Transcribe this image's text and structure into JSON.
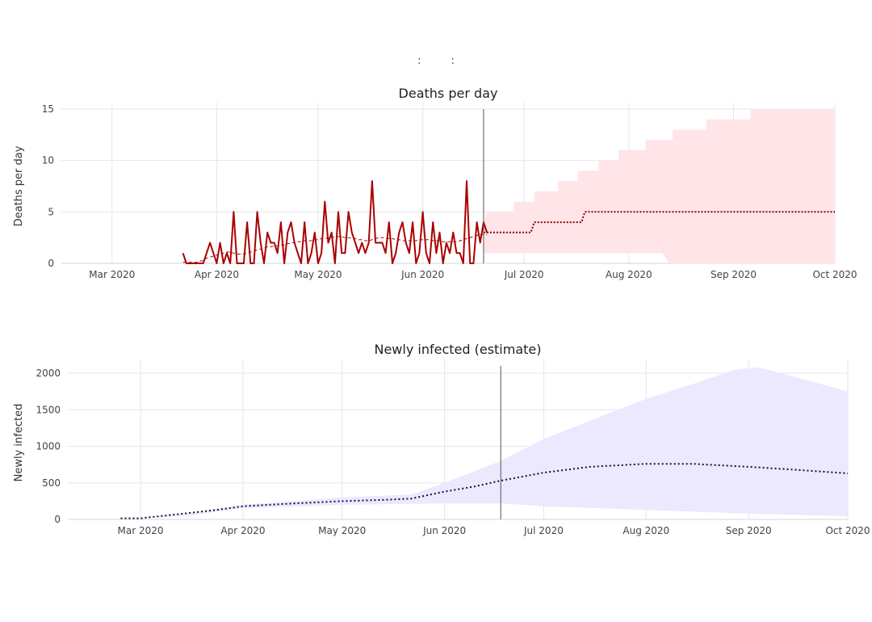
{
  "page_title": ":         :",
  "chart_data": [
    {
      "type": "line",
      "title": "Deaths per day",
      "ylabel": "Deaths per day",
      "xlabel": "",
      "x_ticks": [
        "Mar 2020",
        "Apr 2020",
        "May 2020",
        "Jun 2020",
        "Jul 2020",
        "Aug 2020",
        "Sep 2020",
        "Oct 2020"
      ],
      "x_tick_dates": [
        "2020-03-01",
        "2020-04-01",
        "2020-05-01",
        "2020-06-01",
        "2020-07-01",
        "2020-08-01",
        "2020-09-01",
        "2020-10-01"
      ],
      "xlim": [
        "2020-02-15",
        "2020-10-01"
      ],
      "y_ticks": [
        0,
        5,
        10,
        15
      ],
      "ylim": [
        0,
        15
      ],
      "grid": true,
      "vline_date": "2020-06-19",
      "colors": {
        "observed": "#aa0000",
        "forecast": "#8b0000",
        "band": "#ffe4e8"
      },
      "series": [
        {
          "role": "observed",
          "style": "solid",
          "start_date": "2020-03-22",
          "values": [
            1,
            0,
            0,
            0,
            0,
            0,
            0,
            1,
            2,
            1,
            0,
            2,
            0,
            1,
            0,
            5,
            0,
            0,
            0,
            4,
            0,
            0,
            5,
            2,
            0,
            3,
            2,
            2,
            1,
            4,
            0,
            3,
            4,
            2,
            1,
            0,
            4,
            0,
            1,
            3,
            0,
            1,
            6,
            2,
            3,
            0,
            5,
            1,
            1,
            5,
            3,
            2,
            1,
            2,
            1,
            2,
            8,
            2,
            2,
            2,
            1,
            4,
            0,
            1,
            3,
            4,
            2,
            1,
            4,
            0,
            1,
            5,
            1,
            0,
            4,
            1,
            3,
            0,
            2,
            1,
            3,
            1,
            1,
            0,
            8,
            0,
            0,
            4,
            2,
            4,
            3
          ]
        },
        {
          "role": "observed-smoothed",
          "style": "dashed",
          "start_date": "2020-03-22",
          "values": [
            0.1,
            0.1,
            0.1,
            0.1,
            0.1,
            0.2,
            0.3,
            0.5,
            0.6,
            0.7,
            0.8,
            0.9,
            1.0,
            1.1,
            1.1,
            1.0,
            0.9,
            0.9,
            0.9,
            1.0,
            1.1,
            1.2,
            1.3,
            1.4,
            1.5,
            1.6,
            1.6,
            1.7,
            1.7,
            1.8,
            1.8,
            1.9,
            2.0,
            2.0,
            2.1,
            2.1,
            2.2,
            2.2,
            2.2,
            2.3,
            2.3,
            2.4,
            2.4,
            2.5,
            2.5,
            2.6,
            2.6,
            2.6,
            2.5,
            2.5,
            2.4,
            2.4,
            2.3,
            2.3,
            2.2,
            2.2,
            2.3,
            2.4,
            2.5,
            2.5,
            2.5,
            2.4,
            2.4,
            2.3,
            2.3,
            2.2,
            2.2,
            2.2,
            2.2,
            2.2,
            2.3,
            2.3,
            2.3,
            2.3,
            2.2,
            2.2,
            2.2,
            2.1,
            2.1,
            2.1,
            2.1,
            2.1,
            2.2,
            2.3,
            2.4,
            2.5,
            2.6,
            2.7,
            2.8,
            2.8,
            2.8
          ]
        },
        {
          "role": "forecast",
          "style": "dotted",
          "points": [
            [
              "2020-06-19",
              3
            ],
            [
              "2020-07-03",
              3
            ],
            [
              "2020-07-04",
              4
            ],
            [
              "2020-07-18",
              4
            ],
            [
              "2020-07-19",
              5
            ],
            [
              "2020-10-01",
              5
            ]
          ]
        }
      ],
      "band_upper": [
        [
          "2020-06-19",
          4
        ],
        [
          "2020-06-20",
          5
        ],
        [
          "2020-06-28",
          5
        ],
        [
          "2020-06-28",
          6
        ],
        [
          "2020-07-04",
          6
        ],
        [
          "2020-07-04",
          7
        ],
        [
          "2020-07-11",
          7
        ],
        [
          "2020-07-11",
          8
        ],
        [
          "2020-07-17",
          8
        ],
        [
          "2020-07-17",
          9
        ],
        [
          "2020-07-23",
          9
        ],
        [
          "2020-07-23",
          10
        ],
        [
          "2020-07-29",
          10
        ],
        [
          "2020-07-29",
          11
        ],
        [
          "2020-08-06",
          11
        ],
        [
          "2020-08-06",
          12
        ],
        [
          "2020-08-14",
          12
        ],
        [
          "2020-08-14",
          13
        ],
        [
          "2020-08-24",
          13
        ],
        [
          "2020-08-24",
          14
        ],
        [
          "2020-09-06",
          14
        ],
        [
          "2020-09-06",
          15
        ],
        [
          "2020-10-01",
          15
        ]
      ],
      "band_lower": [
        [
          "2020-06-19",
          1
        ],
        [
          "2020-08-11",
          1
        ],
        [
          "2020-08-13",
          0
        ],
        [
          "2020-10-01",
          0
        ]
      ]
    },
    {
      "type": "area",
      "title": "Newly infected (estimate)",
      "ylabel": "Newly infected",
      "xlabel": "",
      "x_ticks": [
        "Mar 2020",
        "Apr 2020",
        "May 2020",
        "Jun 2020",
        "Jul 2020",
        "Aug 2020",
        "Sep 2020",
        "Oct 2020"
      ],
      "x_tick_dates": [
        "2020-03-01",
        "2020-04-01",
        "2020-05-01",
        "2020-06-01",
        "2020-07-01",
        "2020-08-01",
        "2020-09-01",
        "2020-10-01"
      ],
      "xlim": [
        "2020-02-08",
        "2020-10-01"
      ],
      "y_ticks": [
        0,
        500,
        1000,
        1500,
        2000
      ],
      "ylim": [
        0,
        2100
      ],
      "grid": true,
      "vline_date": "2020-06-18",
      "colors": {
        "line": "#1a0a3c",
        "band": "#ece8fd"
      },
      "series": [
        {
          "role": "estimate",
          "style": "dotted",
          "points": [
            [
              "2020-02-24",
              15
            ],
            [
              "2020-03-01",
              15
            ],
            [
              "2020-03-08",
              50
            ],
            [
              "2020-03-16",
              90
            ],
            [
              "2020-03-24",
              130
            ],
            [
              "2020-04-01",
              180
            ],
            [
              "2020-04-15",
              215
            ],
            [
              "2020-05-01",
              250
            ],
            [
              "2020-05-15",
              270
            ],
            [
              "2020-05-22",
              285
            ],
            [
              "2020-06-01",
              380
            ],
            [
              "2020-06-10",
              450
            ],
            [
              "2020-06-18",
              530
            ],
            [
              "2020-07-01",
              640
            ],
            [
              "2020-07-15",
              720
            ],
            [
              "2020-08-01",
              760
            ],
            [
              "2020-08-15",
              760
            ],
            [
              "2020-09-01",
              720
            ],
            [
              "2020-09-15",
              680
            ],
            [
              "2020-10-01",
              630
            ]
          ]
        }
      ],
      "band_upper": [
        [
          "2020-02-24",
          15
        ],
        [
          "2020-03-01",
          20
        ],
        [
          "2020-03-15",
          80
        ],
        [
          "2020-04-01",
          200
        ],
        [
          "2020-05-01",
          300
        ],
        [
          "2020-05-22",
          340
        ],
        [
          "2020-06-01",
          500
        ],
        [
          "2020-06-18",
          800
        ],
        [
          "2020-07-01",
          1100
        ],
        [
          "2020-07-15",
          1350
        ],
        [
          "2020-08-01",
          1650
        ],
        [
          "2020-08-15",
          1850
        ],
        [
          "2020-08-28",
          2050
        ],
        [
          "2020-09-04",
          2080
        ],
        [
          "2020-09-15",
          1950
        ],
        [
          "2020-10-01",
          1750
        ]
      ],
      "band_lower": [
        [
          "2020-02-24",
          15
        ],
        [
          "2020-03-01",
          15
        ],
        [
          "2020-03-15",
          50
        ],
        [
          "2020-04-01",
          150
        ],
        [
          "2020-05-01",
          200
        ],
        [
          "2020-06-01",
          220
        ],
        [
          "2020-06-18",
          220
        ],
        [
          "2020-07-01",
          180
        ],
        [
          "2020-08-01",
          130
        ],
        [
          "2020-09-01",
          80
        ],
        [
          "2020-10-01",
          45
        ]
      ]
    }
  ]
}
